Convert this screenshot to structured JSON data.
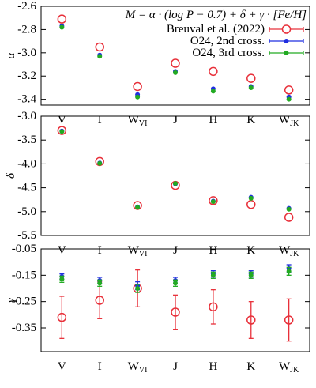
{
  "chart_data": [
    {
      "type": "scatter",
      "ylabel": "α",
      "annotation": "M = α · (log P − 0.7) + δ + γ · [Fe/H]",
      "legend": "upper right",
      "categories": [
        "V",
        "I",
        "W",
        "J",
        "H",
        "K",
        "W"
      ],
      "category_subscripts": [
        null,
        null,
        "VI",
        null,
        null,
        null,
        "JK"
      ],
      "ylim": [
        -3.45,
        -2.6
      ],
      "yticks": [
        -2.6,
        -2.8,
        {
          "value": -3.0,
          "label": "-3.0"
        },
        -3.2,
        -3.4
      ],
      "series": [
        {
          "name": "Breuval et al. (2022)",
          "color": "#e8303a",
          "values": [
            -2.71,
            -2.95,
            -3.29,
            -3.09,
            -3.16,
            -3.22,
            -3.32
          ]
        },
        {
          "name": "O24, 2nd cross.",
          "color": "#1f2ee0",
          "values": [
            -2.77,
            -3.02,
            -3.36,
            -3.16,
            -3.31,
            -3.29,
            -3.38
          ]
        },
        {
          "name": "O24, 3rd cross.",
          "color": "#22aa22",
          "values": [
            -2.78,
            -3.03,
            -3.38,
            -3.17,
            -3.33,
            -3.3,
            -3.4
          ]
        }
      ]
    },
    {
      "type": "scatter",
      "ylabel": "δ",
      "categories": [
        "V",
        "I",
        "W",
        "J",
        "H",
        "K",
        "W"
      ],
      "category_subscripts": [
        null,
        null,
        "VI",
        null,
        null,
        null,
        "JK"
      ],
      "ylim": [
        -5.5,
        -3.0
      ],
      "yticks": [
        {
          "value": -3.0,
          "label": "-3.0"
        },
        -3.5,
        {
          "value": -4.0,
          "label": "-4.0"
        },
        -4.5,
        {
          "value": -5.0,
          "label": "-5.0"
        },
        -5.5
      ],
      "series": [
        {
          "color": "#e8303a",
          "values": [
            -3.3,
            -3.95,
            -4.87,
            -4.45,
            -4.77,
            -4.85,
            -5.12
          ]
        },
        {
          "color": "#1f2ee0",
          "values": [
            -3.31,
            -3.98,
            -4.9,
            -4.42,
            -4.78,
            -4.7,
            -4.93
          ]
        },
        {
          "color": "#22aa22",
          "values": [
            -3.32,
            -3.99,
            -4.91,
            -4.41,
            -4.79,
            -4.72,
            -4.95
          ]
        }
      ]
    },
    {
      "type": "scatter",
      "ylabel": "γ",
      "categories": [
        "V",
        "I",
        "W",
        "J",
        "H",
        "K",
        "W"
      ],
      "category_subscripts": [
        null,
        null,
        "VI",
        null,
        null,
        null,
        "JK"
      ],
      "ylim": [
        -0.44,
        -0.05
      ],
      "yticks": [
        -0.05,
        -0.15,
        -0.25,
        -0.35
      ],
      "series": [
        {
          "color": "#e8303a",
          "values": [
            -0.31,
            -0.245,
            -0.2,
            -0.29,
            -0.27,
            -0.32,
            -0.32
          ],
          "errors": [
            0.08,
            0.07,
            0.07,
            0.065,
            0.065,
            0.07,
            0.08
          ]
        },
        {
          "color": "#1f2ee0",
          "values": [
            -0.155,
            -0.17,
            -0.19,
            -0.17,
            -0.145,
            -0.145,
            -0.125
          ],
          "errors": [
            0.01,
            0.012,
            0.015,
            0.012,
            0.012,
            0.012,
            0.015
          ]
        },
        {
          "color": "#22aa22",
          "values": [
            -0.165,
            -0.18,
            -0.2,
            -0.18,
            -0.15,
            -0.15,
            -0.135
          ],
          "errors": [
            0.012,
            0.012,
            0.015,
            0.012,
            0.012,
            0.012,
            0.015
          ]
        }
      ]
    }
  ]
}
